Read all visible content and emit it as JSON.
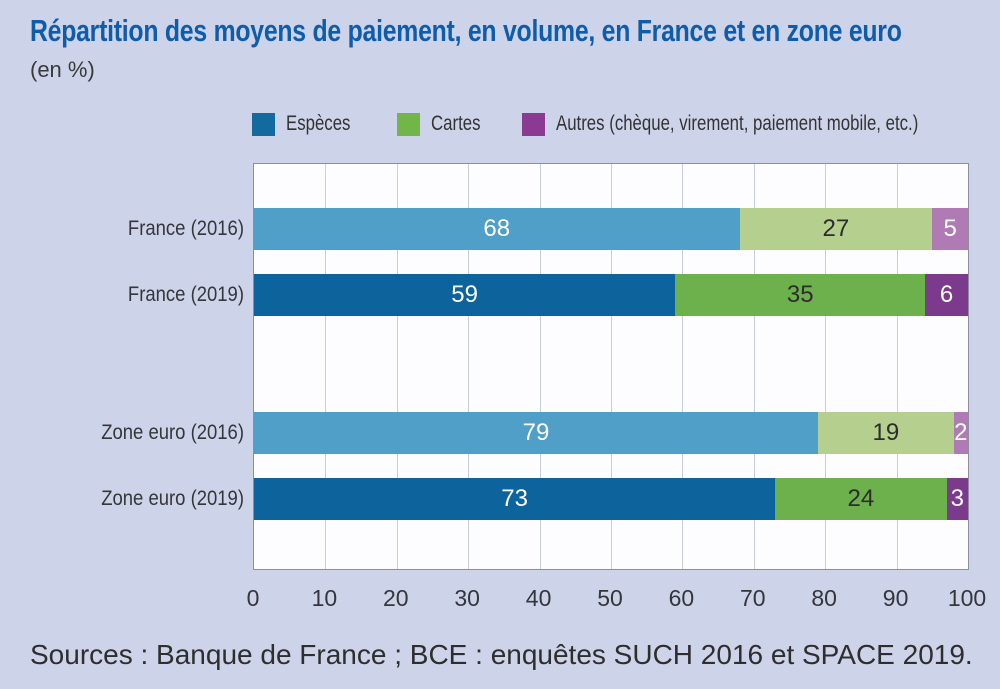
{
  "page": {
    "title": "Répartition des moyens de paiement, en volume, en France et en zone euro",
    "subtitle": "(en %)",
    "source": "Sources : Banque de France ; BCE : enquêtes SUCH 2016 et SPACE 2019."
  },
  "colors": {
    "background": "#cdd4e9",
    "title": "#0f5cab",
    "text": "#35363a",
    "plot_background": "#fdfdff",
    "plot_border": "#8b8fa0",
    "gridline": "#c9cdda"
  },
  "chart_data": {
    "type": "bar",
    "orientation": "horizontal",
    "stacked": true,
    "title": "Répartition des moyens de paiement, en volume, en France et en zone euro",
    "units": "%",
    "xlabel": "",
    "ylabel": "",
    "xlim": [
      0,
      100
    ],
    "xticks": [
      0,
      10,
      20,
      30,
      40,
      50,
      60,
      70,
      80,
      90,
      100
    ],
    "grid": "vertical",
    "legend_position": "top",
    "categories": [
      "France (2016)",
      "France (2019)",
      "Zone euro (2016)",
      "Zone euro (2019)"
    ],
    "category_shades": [
      "light",
      "dark",
      "light",
      "dark"
    ],
    "series": [
      {
        "id": "especes",
        "name": "Espèces",
        "values": [
          68,
          59,
          79,
          73
        ],
        "color_light": "#4f9fc8",
        "color_dark": "#0d639c",
        "legend_color": "#136a9e",
        "label_color": "#ffffff"
      },
      {
        "id": "cartes",
        "name": "Cartes",
        "values": [
          27,
          35,
          19,
          24
        ],
        "color_light": "#b4cf8e",
        "color_dark": "#6cb14c",
        "legend_color": "#72b549",
        "label_color": "#2d2d2d"
      },
      {
        "id": "autres",
        "name": "Autres (chèque, virement, paiement mobile, etc.)",
        "values": [
          5,
          6,
          2,
          3
        ],
        "color_light": "#b07ab5",
        "color_dark": "#7c3a8d",
        "legend_color": "#8a3a92",
        "label_color": "#ffffff"
      }
    ]
  }
}
